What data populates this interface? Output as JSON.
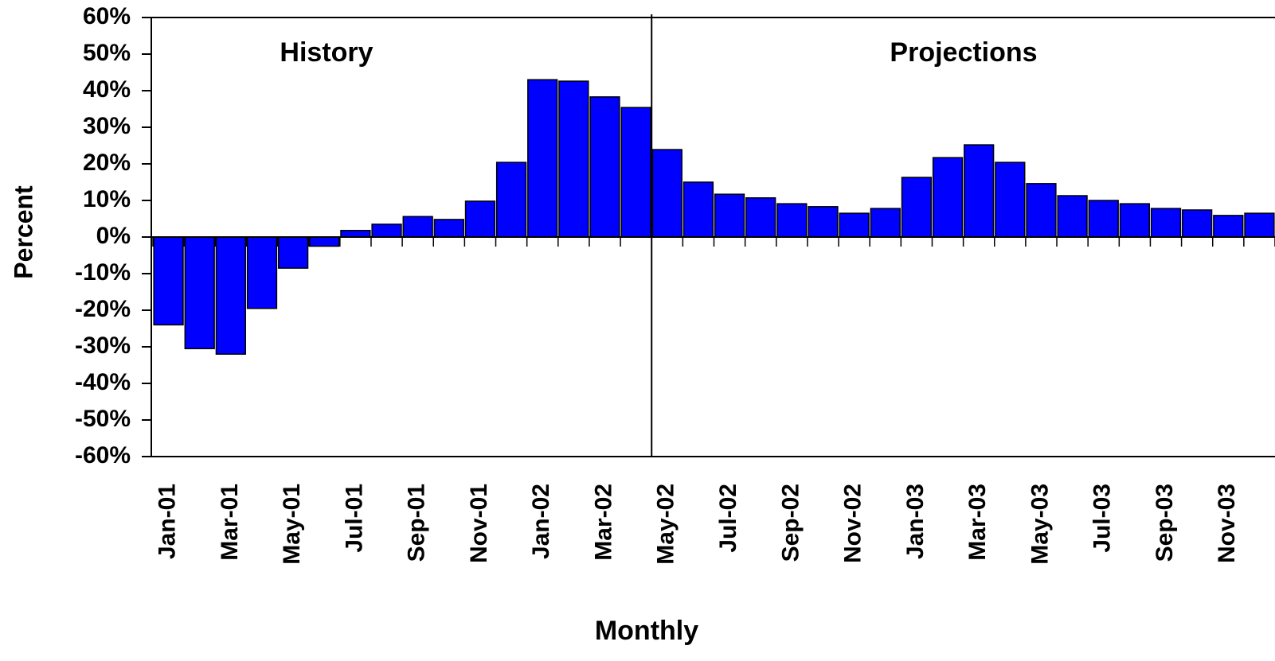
{
  "chart_data": {
    "type": "bar",
    "annotations": [
      "History",
      "Projections"
    ],
    "x_label": "Monthly",
    "y_label": "Percent",
    "categories": [
      "Jan-01",
      null,
      "Mar-01",
      null,
      "May-01",
      null,
      "Jul-01",
      null,
      "Sep-01",
      null,
      "Nov-01",
      null,
      "Jan-02",
      null,
      "Mar-02",
      null,
      "May-02",
      null,
      "Jul-02",
      null,
      "Sep-02",
      null,
      "Nov-02",
      null,
      "Jan-03",
      null,
      "Mar-03",
      null,
      "May-03",
      null,
      "Jul-03",
      null,
      "Sep-03",
      null,
      "Nov-03",
      null
    ],
    "values": [
      -24,
      -30.5,
      -32,
      -19.5,
      -8.5,
      -2.5,
      1.8,
      3.5,
      5.6,
      4.8,
      9.8,
      20.4,
      43,
      42.6,
      38.3,
      35.4,
      23.9,
      15,
      11.7,
      10.7,
      9.1,
      8.3,
      6.5,
      7.8,
      16.3,
      21.7,
      25.2,
      20.4,
      14.6,
      11.3,
      10,
      9.1,
      7.8,
      7.4,
      5.9,
      6.5
    ],
    "color": "#0000ff",
    "ylim": [
      -60,
      60
    ],
    "yticks": [
      {
        "value": -60,
        "label": "-60%"
      },
      {
        "value": -50,
        "label": "-50%"
      },
      {
        "value": -40,
        "label": "-40%"
      },
      {
        "value": -30,
        "label": "-30%"
      },
      {
        "value": -20,
        "label": "-20%"
      },
      {
        "value": -10,
        "label": "-10%"
      },
      {
        "value": 0,
        "label": "0%"
      },
      {
        "value": 10,
        "label": "10%"
      },
      {
        "value": 20,
        "label": "20%"
      },
      {
        "value": 30,
        "label": "30%"
      },
      {
        "value": 40,
        "label": "40%"
      },
      {
        "value": 50,
        "label": "50%"
      },
      {
        "value": 60,
        "label": "60%"
      }
    ]
  }
}
